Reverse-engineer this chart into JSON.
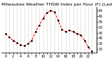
{
  "title": "Milwaukee Weather THSW Index per Hour (F) (Last 24 Hours)",
  "x_values": [
    0,
    1,
    2,
    3,
    4,
    5,
    6,
    7,
    8,
    9,
    10,
    11,
    12,
    13,
    14,
    15,
    16,
    17,
    18,
    19,
    20,
    21,
    22,
    23
  ],
  "y_values": [
    44,
    41,
    38,
    36,
    34,
    33,
    35,
    38,
    46,
    52,
    58,
    63,
    65,
    64,
    56,
    48,
    46,
    47,
    46,
    44,
    43,
    38,
    32,
    28
  ],
  "line_color": "#ff0000",
  "marker_color": "#000000",
  "bg_color": "#ffffff",
  "plot_bg_color": "#ffffff",
  "grid_color": "#888888",
  "ylim": [
    27,
    68
  ],
  "ytick_values": [
    30,
    35,
    40,
    45,
    50,
    55,
    60,
    65
  ],
  "title_fontsize": 4.5,
  "tick_fontsize": 3.5,
  "line_width": 0.7,
  "marker_size": 1.8
}
